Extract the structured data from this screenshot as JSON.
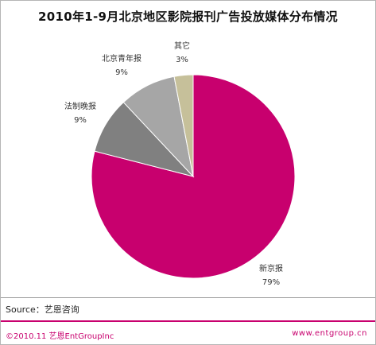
{
  "chart_data": {
    "type": "pie",
    "title": "2010年1-9月北京地区影院报刊广告投放媒体分布情况",
    "slices": [
      {
        "label": "新京报",
        "percent_label": "79%",
        "value": 79,
        "color": "#c8006e"
      },
      {
        "label": "法制晚报",
        "percent_label": "9%",
        "value": 9,
        "color": "#808080"
      },
      {
        "label": "北京青年报",
        "percent_label": "9%",
        "value": 9,
        "color": "#a6a6a6"
      },
      {
        "label": "其它",
        "percent_label": "3%",
        "value": 3,
        "color": "#c6c09a"
      }
    ]
  },
  "source": "Source：艺恩咨询",
  "footer": {
    "copyright": "©2010.11 艺恩EntGroupInc",
    "website": "www.entgroup.cn"
  }
}
